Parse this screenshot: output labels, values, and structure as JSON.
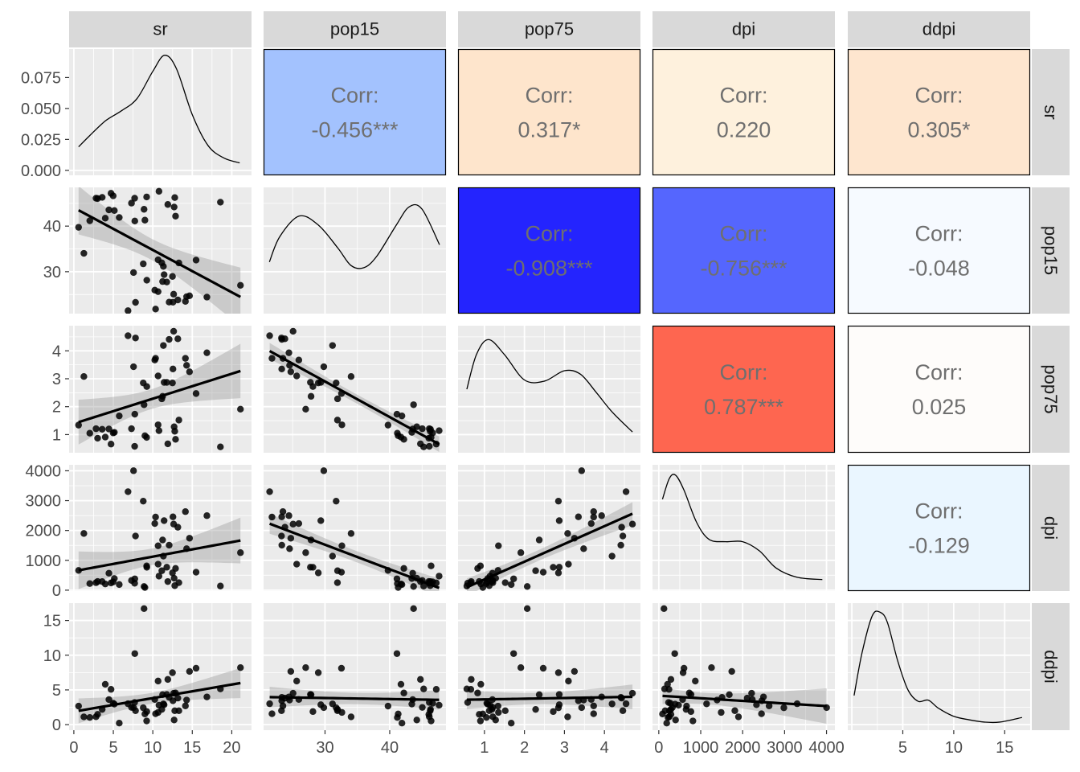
{
  "chart_data": {
    "type": "scatter",
    "variables": [
      "sr",
      "pop15",
      "pop75",
      "dpi",
      "ddpi"
    ],
    "column_strips": [
      "sr",
      "pop15",
      "pop75",
      "dpi",
      "ddpi"
    ],
    "row_strips": [
      "sr",
      "pop15",
      "pop75",
      "dpi",
      "ddpi"
    ],
    "corr_label": "Corr:",
    "correlations": [
      {
        "row": 0,
        "col": 1,
        "text": "-0.456***",
        "color": "#A3C2FE"
      },
      {
        "row": 0,
        "col": 2,
        "text": "0.317*",
        "color": "#FEE5CC"
      },
      {
        "row": 0,
        "col": 3,
        "text": "0.220",
        "color": "#FEF1DD"
      },
      {
        "row": 0,
        "col": 4,
        "text": "0.305*",
        "color": "#FEE6CF"
      },
      {
        "row": 1,
        "col": 2,
        "text": "-0.908***",
        "color": "#2424FE"
      },
      {
        "row": 1,
        "col": 3,
        "text": "-0.756***",
        "color": "#5566FE"
      },
      {
        "row": 1,
        "col": 4,
        "text": "-0.048",
        "color": "#F6FAFF"
      },
      {
        "row": 2,
        "col": 3,
        "text": "0.787***",
        "color": "#FE6650"
      },
      {
        "row": 2,
        "col": 4,
        "text": "0.025",
        "color": "#FEFCFA"
      },
      {
        "row": 3,
        "col": 4,
        "text": "-0.129",
        "color": "#EAF6FF"
      }
    ],
    "x_ticks": {
      "sr": [
        "0",
        "5",
        "10",
        "15",
        "20"
      ],
      "pop15": [
        "30",
        "40"
      ],
      "pop75": [
        "1",
        "2",
        "3",
        "4"
      ],
      "dpi": [
        "0",
        "1000",
        "2000",
        "3000",
        "4000"
      ],
      "ddpi": [
        "5",
        "10",
        "15"
      ]
    },
    "y_ticks": {
      "sr": [
        "0.000",
        "0.025",
        "0.050",
        "0.075"
      ],
      "pop15": [
        "30",
        "40"
      ],
      "pop75": [
        "1",
        "2",
        "3",
        "4"
      ],
      "dpi": [
        "0",
        "1000",
        "2000",
        "3000",
        "4000"
      ],
      "ddpi": [
        "0",
        "5",
        "10",
        "15"
      ]
    },
    "x_limits": {
      "sr": [
        -0.6,
        22.5
      ],
      "pop15": [
        20.5,
        48.7
      ],
      "pop75": [
        0.34,
        4.9
      ],
      "dpi": [
        -150,
        4200
      ],
      "ddpi": [
        -0.4,
        17.5
      ]
    },
    "y_limits": {
      "sr": [
        -0.004,
        0.098
      ],
      "pop15": [
        20.8,
        48.5
      ],
      "pop75": [
        0.35,
        4.9
      ],
      "dpi": [
        -30,
        4200
      ],
      "ddpi": [
        -0.8,
        17.5
      ]
    },
    "density": {
      "sr": {
        "x": [
          0.6,
          2,
          4,
          6,
          8,
          10,
          11.5,
          13,
          15,
          17,
          19,
          21
        ],
        "y": [
          0.019,
          0.028,
          0.04,
          0.048,
          0.058,
          0.08,
          0.093,
          0.082,
          0.045,
          0.02,
          0.01,
          0.006
        ]
      },
      "pop15": {
        "x": [
          21.4,
          23,
          26,
          29,
          32,
          34,
          36,
          38,
          41,
          43,
          45,
          47.7
        ],
        "y": [
          0.4,
          0.62,
          0.8,
          0.72,
          0.52,
          0.37,
          0.35,
          0.45,
          0.72,
          0.88,
          0.86,
          0.55
        ]
      },
      "pop75": {
        "x": [
          0.56,
          0.8,
          1.1,
          1.5,
          2.0,
          2.5,
          3.0,
          3.4,
          3.8,
          4.2,
          4.7
        ],
        "y": [
          0.5,
          0.8,
          0.93,
          0.8,
          0.58,
          0.57,
          0.66,
          0.63,
          0.47,
          0.3,
          0.13
        ]
      },
      "dpi": {
        "x": [
          88,
          250,
          400,
          600,
          900,
          1200,
          1600,
          2000,
          2400,
          2800,
          3300,
          3900
        ],
        "y": [
          0.75,
          0.93,
          0.96,
          0.83,
          0.55,
          0.4,
          0.38,
          0.38,
          0.3,
          0.15,
          0.07,
          0.05
        ]
      },
      "ddpi": {
        "x": [
          0.22,
          1,
          2,
          2.8,
          3.5,
          4.5,
          5.5,
          6.5,
          7.5,
          8.5,
          10,
          11.5,
          13,
          14.5,
          16.7
        ],
        "y": [
          0.25,
          0.62,
          0.94,
          0.97,
          0.88,
          0.55,
          0.3,
          0.2,
          0.21,
          0.14,
          0.07,
          0.04,
          0.02,
          0.02,
          0.06
        ]
      }
    },
    "points": [
      {
        "sr": 11.43,
        "pop15": 29.35,
        "pop75": 2.87,
        "dpi": 2329.68,
        "ddpi": 2.87
      },
      {
        "sr": 12.07,
        "pop15": 23.32,
        "pop75": 4.41,
        "dpi": 1507.99,
        "ddpi": 3.93
      },
      {
        "sr": 13.17,
        "pop15": 23.8,
        "pop75": 4.43,
        "dpi": 2108.47,
        "ddpi": 3.82
      },
      {
        "sr": 5.75,
        "pop15": 41.89,
        "pop75": 1.67,
        "dpi": 189.13,
        "ddpi": 0.22
      },
      {
        "sr": 12.88,
        "pop15": 42.19,
        "pop75": 0.83,
        "dpi": 728.47,
        "ddpi": 4.56
      },
      {
        "sr": 8.79,
        "pop15": 31.72,
        "pop75": 2.85,
        "dpi": 2982.88,
        "ddpi": 2.43
      },
      {
        "sr": 0.6,
        "pop15": 39.74,
        "pop75": 1.34,
        "dpi": 662.86,
        "ddpi": 2.67
      },
      {
        "sr": 11.9,
        "pop15": 44.75,
        "pop75": 0.67,
        "dpi": 289.52,
        "ddpi": 6.51
      },
      {
        "sr": 4.98,
        "pop15": 46.64,
        "pop75": 1.06,
        "dpi": 276.65,
        "ddpi": 3.08
      },
      {
        "sr": 10.78,
        "pop15": 47.64,
        "pop75": 1.14,
        "dpi": 471.24,
        "ddpi": 2.8
      },
      {
        "sr": 16.85,
        "pop15": 24.42,
        "pop75": 3.93,
        "dpi": 2496.53,
        "ddpi": 3.99
      },
      {
        "sr": 3.59,
        "pop15": 46.31,
        "pop75": 1.19,
        "dpi": 287.77,
        "ddpi": 2.19
      },
      {
        "sr": 11.24,
        "pop15": 27.84,
        "pop75": 2.37,
        "dpi": 1681.25,
        "ddpi": 4.32
      },
      {
        "sr": 12.64,
        "pop15": 25.06,
        "pop75": 4.7,
        "dpi": 2213.82,
        "ddpi": 4.52
      },
      {
        "sr": 12.55,
        "pop15": 23.31,
        "pop75": 3.35,
        "dpi": 2457.12,
        "ddpi": 3.44
      },
      {
        "sr": 10.67,
        "pop15": 25.62,
        "pop75": 3.1,
        "dpi": 870.85,
        "ddpi": 6.28
      },
      {
        "sr": 3.01,
        "pop15": 46.05,
        "pop75": 0.87,
        "dpi": 289.71,
        "ddpi": 1.48
      },
      {
        "sr": 7.7,
        "pop15": 46.12,
        "pop75": 0.58,
        "dpi": 232.44,
        "ddpi": 3.19
      },
      {
        "sr": 1.27,
        "pop15": 34.03,
        "pop75": 3.08,
        "dpi": 1900.1,
        "ddpi": 1.12
      },
      {
        "sr": 9.0,
        "pop15": 41.31,
        "pop75": 0.96,
        "dpi": 88.94,
        "ddpi": 1.54
      },
      {
        "sr": 11.34,
        "pop15": 31.16,
        "pop75": 4.19,
        "dpi": 1139.95,
        "ddpi": 2.99
      },
      {
        "sr": 14.28,
        "pop15": 24.52,
        "pop75": 3.48,
        "dpi": 1390.0,
        "ddpi": 3.54
      },
      {
        "sr": 21.1,
        "pop15": 27.01,
        "pop75": 1.91,
        "dpi": 1257.28,
        "ddpi": 8.21
      },
      {
        "sr": 3.98,
        "pop15": 41.74,
        "pop75": 0.91,
        "dpi": 207.68,
        "ddpi": 5.81
      },
      {
        "sr": 10.35,
        "pop15": 21.8,
        "pop75": 3.73,
        "dpi": 2449.39,
        "ddpi": 1.57
      },
      {
        "sr": 15.48,
        "pop15": 32.54,
        "pop75": 2.47,
        "dpi": 601.05,
        "ddpi": 8.12
      },
      {
        "sr": 10.25,
        "pop15": 25.95,
        "pop75": 3.67,
        "dpi": 2231.03,
        "ddpi": 3.62
      },
      {
        "sr": 14.65,
        "pop15": 24.71,
        "pop75": 3.25,
        "dpi": 1740.7,
        "ddpi": 7.66
      },
      {
        "sr": 10.67,
        "pop15": 32.61,
        "pop75": 1.35,
        "dpi": 1487.52,
        "ddpi": 1.76
      },
      {
        "sr": 7.3,
        "pop15": 45.04,
        "pop75": 1.21,
        "dpi": 325.54,
        "ddpi": 2.48
      },
      {
        "sr": 4.44,
        "pop15": 43.56,
        "pop75": 1.2,
        "dpi": 568.56,
        "ddpi": 3.61
      },
      {
        "sr": 2.02,
        "pop15": 41.18,
        "pop75": 1.05,
        "dpi": 220.56,
        "ddpi": 1.03
      },
      {
        "sr": 12.7,
        "pop15": 44.19,
        "pop75": 1.28,
        "dpi": 400.06,
        "ddpi": 0.67
      },
      {
        "sr": 12.78,
        "pop15": 46.26,
        "pop75": 1.12,
        "dpi": 152.01,
        "ddpi": 2.0
      },
      {
        "sr": 12.49,
        "pop15": 28.96,
        "pop75": 2.85,
        "dpi": 579.51,
        "ddpi": 7.48
      },
      {
        "sr": 11.14,
        "pop15": 31.94,
        "pop75": 2.28,
        "dpi": 651.11,
        "ddpi": 2.19
      },
      {
        "sr": 13.3,
        "pop15": 31.92,
        "pop75": 1.52,
        "dpi": 250.96,
        "ddpi": 2.0
      },
      {
        "sr": 11.77,
        "pop15": 27.74,
        "pop75": 2.87,
        "dpi": 768.79,
        "ddpi": 4.35
      },
      {
        "sr": 6.86,
        "pop15": 21.44,
        "pop75": 4.54,
        "dpi": 3299.49,
        "ddpi": 3.01
      },
      {
        "sr": 14.13,
        "pop15": 23.49,
        "pop75": 3.73,
        "dpi": 2630.96,
        "ddpi": 2.7
      },
      {
        "sr": 5.13,
        "pop15": 43.42,
        "pop75": 1.08,
        "dpi": 389.66,
        "ddpi": 2.96
      },
      {
        "sr": 2.81,
        "pop15": 46.12,
        "pop75": 1.21,
        "dpi": 249.87,
        "ddpi": 1.13
      },
      {
        "sr": 7.81,
        "pop15": 23.27,
        "pop75": 4.46,
        "dpi": 1813.93,
        "ddpi": 2.01
      },
      {
        "sr": 7.56,
        "pop15": 29.81,
        "pop75": 3.43,
        "dpi": 4001.89,
        "ddpi": 2.45
      },
      {
        "sr": 9.22,
        "pop15": 46.4,
        "pop75": 0.9,
        "dpi": 813.39,
        "ddpi": 0.53
      },
      {
        "sr": 18.56,
        "pop15": 45.25,
        "pop75": 0.56,
        "dpi": 138.33,
        "ddpi": 5.14
      },
      {
        "sr": 7.72,
        "pop15": 41.12,
        "pop75": 1.73,
        "dpi": 380.47,
        "ddpi": 10.23
      },
      {
        "sr": 9.24,
        "pop15": 28.13,
        "pop75": 2.72,
        "dpi": 766.54,
        "ddpi": 1.88
      },
      {
        "sr": 8.89,
        "pop15": 43.69,
        "pop75": 2.07,
        "dpi": 123.58,
        "ddpi": 16.71
      },
      {
        "sr": 4.71,
        "pop15": 47.2,
        "pop75": 0.66,
        "dpi": 242.69,
        "ddpi": 5.08
      }
    ]
  }
}
